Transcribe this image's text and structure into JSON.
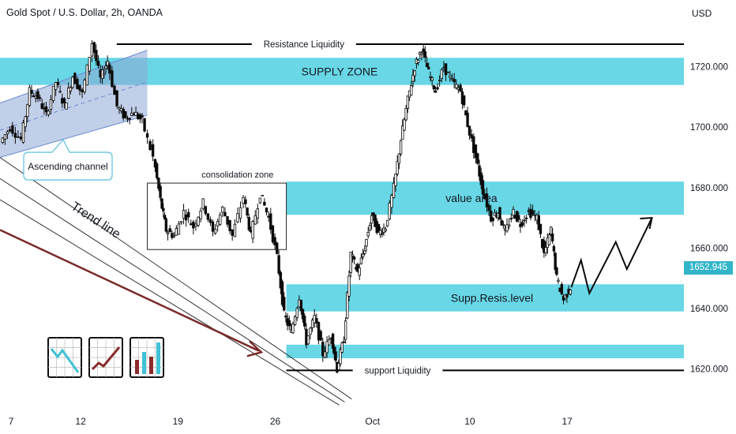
{
  "header": {
    "title": "Gold Spot / U.S. Dollar, 2h, OANDA",
    "currency": "USD"
  },
  "price_badge": {
    "value": "1652.945",
    "color": "#33b5c9"
  },
  "colors": {
    "zone": "#4fd0e0",
    "candle": "#0a0a0a",
    "channel": "#8ea8d6",
    "trend_arrow": "#7a2a2a",
    "projection": "#0a0a0a"
  },
  "chart_data": {
    "type": "candlestick",
    "title": "Gold Spot / U.S. Dollar, 2h, OANDA",
    "ylabel": "USD",
    "ylim": [
      1610,
      1735
    ],
    "y_ticks": [
      "1720.000",
      "1700.000",
      "1680.000",
      "1660.000",
      "1640.000",
      "1620.000"
    ],
    "x_ticks": [
      "7",
      "12",
      "19",
      "26",
      "Oct",
      "10",
      "17"
    ],
    "x_tick_days": [
      7,
      12,
      19,
      26,
      33,
      40,
      47
    ],
    "xlim_days": [
      6.2,
      55.4
    ],
    "closes": [
      {
        "day": 6.3,
        "price": 1695
      },
      {
        "day": 7.0,
        "price": 1700
      },
      {
        "day": 7.8,
        "price": 1696
      },
      {
        "day": 8.4,
        "price": 1712
      },
      {
        "day": 9.0,
        "price": 1710
      },
      {
        "day": 9.6,
        "price": 1704
      },
      {
        "day": 10.3,
        "price": 1715
      },
      {
        "day": 10.9,
        "price": 1707
      },
      {
        "day": 11.5,
        "price": 1717
      },
      {
        "day": 12.2,
        "price": 1711
      },
      {
        "day": 12.9,
        "price": 1728
      },
      {
        "day": 13.5,
        "price": 1716
      },
      {
        "day": 14.0,
        "price": 1722
      },
      {
        "day": 14.7,
        "price": 1707
      },
      {
        "day": 15.3,
        "price": 1703
      },
      {
        "day": 15.9,
        "price": 1705
      },
      {
        "day": 16.5,
        "price": 1702
      },
      {
        "day": 17.3,
        "price": 1690
      },
      {
        "day": 17.8,
        "price": 1676
      },
      {
        "day": 18.2,
        "price": 1666
      },
      {
        "day": 18.8,
        "price": 1664
      },
      {
        "day": 19.5,
        "price": 1672
      },
      {
        "day": 20.2,
        "price": 1667
      },
      {
        "day": 20.9,
        "price": 1675
      },
      {
        "day": 21.6,
        "price": 1665
      },
      {
        "day": 22.3,
        "price": 1673
      },
      {
        "day": 23.0,
        "price": 1664
      },
      {
        "day": 23.8,
        "price": 1677
      },
      {
        "day": 24.3,
        "price": 1664
      },
      {
        "day": 25.0,
        "price": 1678
      },
      {
        "day": 25.6,
        "price": 1670
      },
      {
        "day": 26.2,
        "price": 1657
      },
      {
        "day": 26.7,
        "price": 1638
      },
      {
        "day": 27.2,
        "price": 1632
      },
      {
        "day": 27.8,
        "price": 1644
      },
      {
        "day": 28.3,
        "price": 1629
      },
      {
        "day": 28.9,
        "price": 1637
      },
      {
        "day": 29.5,
        "price": 1625
      },
      {
        "day": 30.1,
        "price": 1631
      },
      {
        "day": 30.5,
        "price": 1620
      },
      {
        "day": 31.0,
        "price": 1630
      },
      {
        "day": 31.5,
        "price": 1658
      },
      {
        "day": 32.0,
        "price": 1652
      },
      {
        "day": 32.5,
        "price": 1660
      },
      {
        "day": 33.0,
        "price": 1671
      },
      {
        "day": 33.5,
        "price": 1665
      },
      {
        "day": 34.0,
        "price": 1667
      },
      {
        "day": 34.6,
        "price": 1680
      },
      {
        "day": 35.1,
        "price": 1696
      },
      {
        "day": 35.6,
        "price": 1709
      },
      {
        "day": 36.1,
        "price": 1720
      },
      {
        "day": 36.6,
        "price": 1726
      },
      {
        "day": 37.1,
        "price": 1718
      },
      {
        "day": 37.6,
        "price": 1712
      },
      {
        "day": 38.2,
        "price": 1720
      },
      {
        "day": 38.8,
        "price": 1715
      },
      {
        "day": 39.4,
        "price": 1712
      },
      {
        "day": 39.9,
        "price": 1701
      },
      {
        "day": 40.5,
        "price": 1690
      },
      {
        "day": 41.0,
        "price": 1679
      },
      {
        "day": 41.6,
        "price": 1670
      },
      {
        "day": 42.1,
        "price": 1672
      },
      {
        "day": 42.6,
        "price": 1665
      },
      {
        "day": 43.2,
        "price": 1672
      },
      {
        "day": 43.7,
        "price": 1668
      },
      {
        "day": 44.3,
        "price": 1672
      },
      {
        "day": 44.9,
        "price": 1670
      },
      {
        "day": 45.4,
        "price": 1658
      },
      {
        "day": 45.9,
        "price": 1666
      },
      {
        "day": 46.3,
        "price": 1650
      },
      {
        "day": 46.8,
        "price": 1643
      },
      {
        "day": 47.3,
        "price": 1647
      }
    ],
    "projection": [
      {
        "day": 47.3,
        "price": 1647
      },
      {
        "day": 48.0,
        "price": 1656
      },
      {
        "day": 48.6,
        "price": 1645
      },
      {
        "day": 50.5,
        "price": 1662
      },
      {
        "day": 51.3,
        "price": 1653
      },
      {
        "day": 53.1,
        "price": 1670
      }
    ],
    "zones": [
      {
        "label": "SUPPLY ZONE",
        "low": 1714,
        "high": 1723,
        "start_day": 6.2
      },
      {
        "label": "value area",
        "low": 1671,
        "high": 1682,
        "start_day": 26.8
      },
      {
        "label": "Supp.Resis.level",
        "low": 1639,
        "high": 1648,
        "start_day": 26.8
      },
      {
        "label": "",
        "low": 1623.5,
        "high": 1628,
        "start_day": 26.8
      }
    ],
    "levels": [
      {
        "label": "Resistance Liquidity",
        "price": 1727.5,
        "start_day": 14.6,
        "end_day": 55.4
      },
      {
        "label": "support Liquidity",
        "price": 1619.5,
        "start_day": 26.8,
        "end_day": 55.4
      }
    ]
  },
  "annotations": {
    "ascending_channel": "Ascending channel",
    "consolidation_zone": "consolidation zone",
    "trend_line": "Trend line"
  },
  "tool_icons": [
    "line-chart-icon",
    "trend-chart-icon",
    "bar-chart-icon"
  ]
}
